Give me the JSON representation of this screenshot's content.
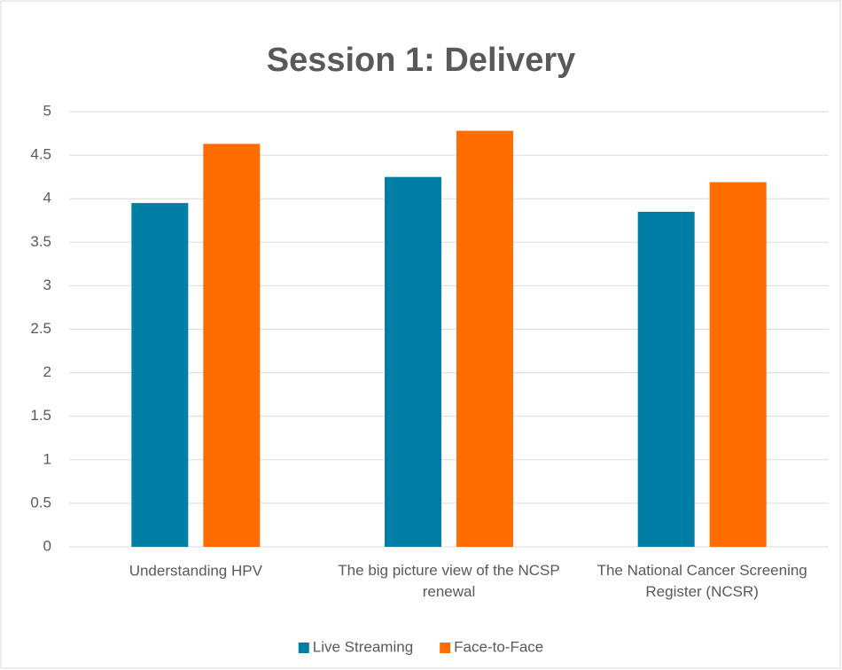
{
  "chart_data": {
    "type": "bar",
    "title": "Session 1: Delivery",
    "categories": [
      "Understanding HPV",
      "The big picture view of the NCSP renewal",
      "The National Cancer Screening Register (NCSR)"
    ],
    "series": [
      {
        "name": "Live Streaming",
        "color": "#017ea3",
        "values": [
          3.95,
          4.25,
          3.85
        ]
      },
      {
        "name": "Face-to-Face",
        "color": "#ff6c00",
        "values": [
          4.63,
          4.78,
          4.19
        ]
      }
    ],
    "ylim": [
      0,
      5
    ],
    "yticks": [
      0,
      0.5,
      1,
      1.5,
      2,
      2.5,
      3,
      3.5,
      4,
      4.5,
      5
    ],
    "grid": true,
    "legend": "bottom"
  }
}
